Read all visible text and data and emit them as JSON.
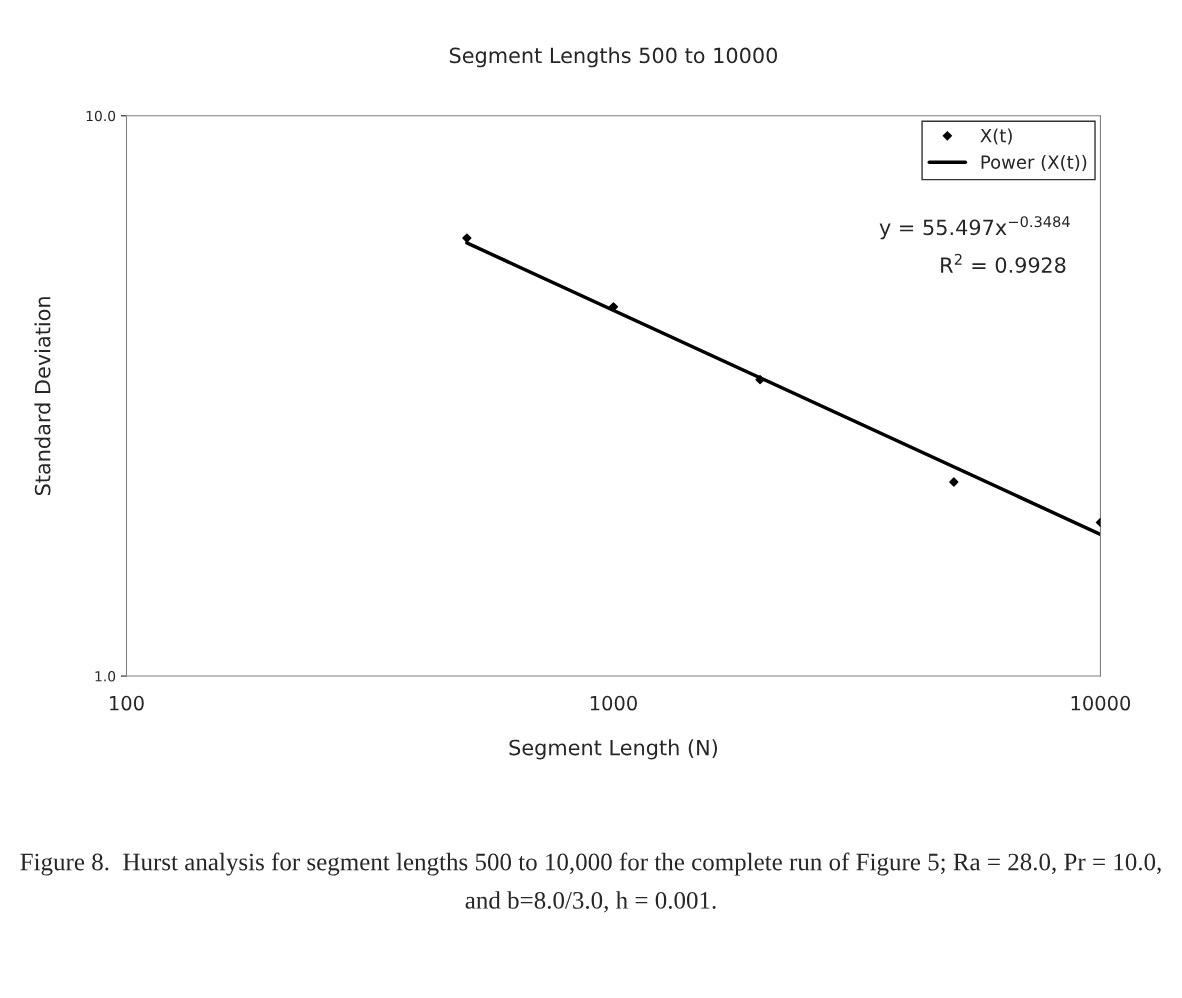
{
  "chart_data": {
    "type": "scatter",
    "title": "Segment Lengths 500 to 10000",
    "xlabel": "Segment Length (N)",
    "ylabel": "Standard Deviation",
    "x": [
      500,
      1000,
      2000,
      5000,
      10000
    ],
    "series": [
      {
        "name": "X(t)",
        "color": "#000000",
        "values": [
          6.05,
          4.56,
          3.38,
          2.22,
          1.88
        ],
        "marker": "diamond"
      },
      {
        "name": "Power (X(t))",
        "type": "line",
        "color": "#000000",
        "x": [
          500,
          10000
        ],
        "values": [
          5.93,
          1.79
        ],
        "marker": "none",
        "line_style": "solid"
      }
    ],
    "log": "xy",
    "xlim": [
      100,
      10000
    ],
    "ylim": [
      1,
      10
    ],
    "xticks": [
      100,
      1000,
      10000
    ],
    "yticks": [
      {
        "value": 1,
        "label": "1.0"
      },
      {
        "value": 10,
        "label": "10.0"
      }
    ],
    "grid": false,
    "legend": "top right",
    "annotations": [
      "y = 55.497x$^{−0.3484}$",
      "R$^{2}$ = 0.9928",
      "Figure 8.  Hurst analysis for segment lengths 500 to 10,000 for the complete run of Figure 5; Ra = 28.0, Pr = 10.0, and b=8.0/3.0, h = 0.001."
    ]
  }
}
